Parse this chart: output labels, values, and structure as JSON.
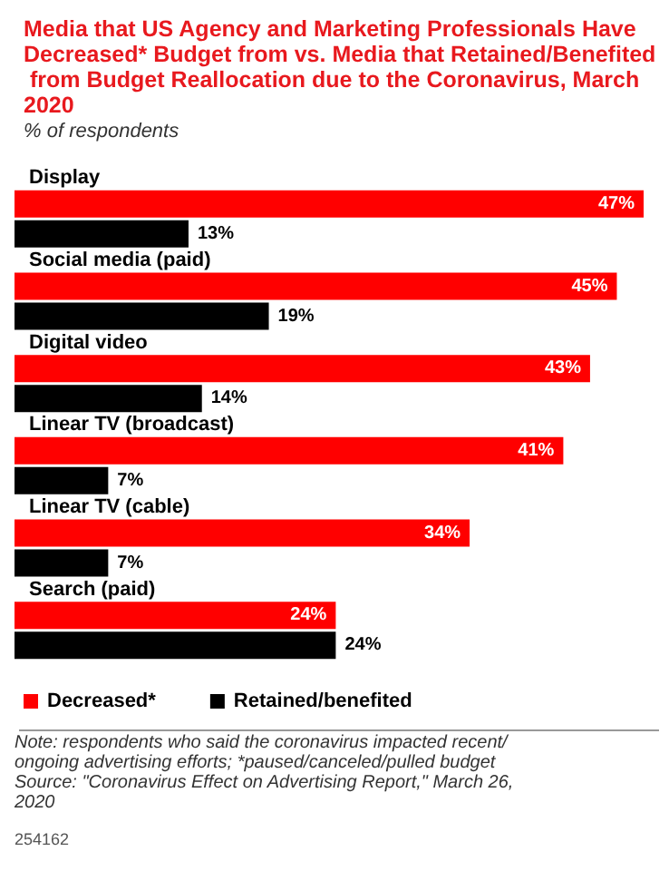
{
  "chart_data": {
    "type": "bar",
    "orientation": "horizontal",
    "title": "Media that US Agency and Marketing Professionals Have Decreased* Budget from vs. Media that Retained/Benefited from Budget Reallocation due to the Coronavirus, March 2020",
    "subtitle": "% of respondents",
    "categories": [
      "Display",
      "Social media (paid)",
      "Digital video",
      "Linear TV (broadcast)",
      "Linear TV (cable)",
      "Search (paid)"
    ],
    "series": [
      {
        "name": "Decreased*",
        "color": "#ff0000",
        "values": [
          47,
          45,
          43,
          41,
          34,
          24
        ],
        "value_labels": [
          "47%",
          "45%",
          "43%",
          "41%",
          "34%",
          "24%"
        ]
      },
      {
        "name": "Retained/benefited",
        "color": "#000000",
        "values": [
          13,
          19,
          14,
          7,
          7,
          24
        ],
        "value_labels": [
          "13%",
          "19%",
          "14%",
          "7%",
          "7%",
          "24%"
        ]
      }
    ],
    "legend": "bottom left",
    "annotations": [
      "Note: respondents who said the coronavirus impacted recent/ongoing advertising efforts; *paused/canceled/pulled budget",
      "Source: \"Coronavirus Effect on Advertising Report,\" March 26, 2020",
      "254162"
    ]
  }
}
